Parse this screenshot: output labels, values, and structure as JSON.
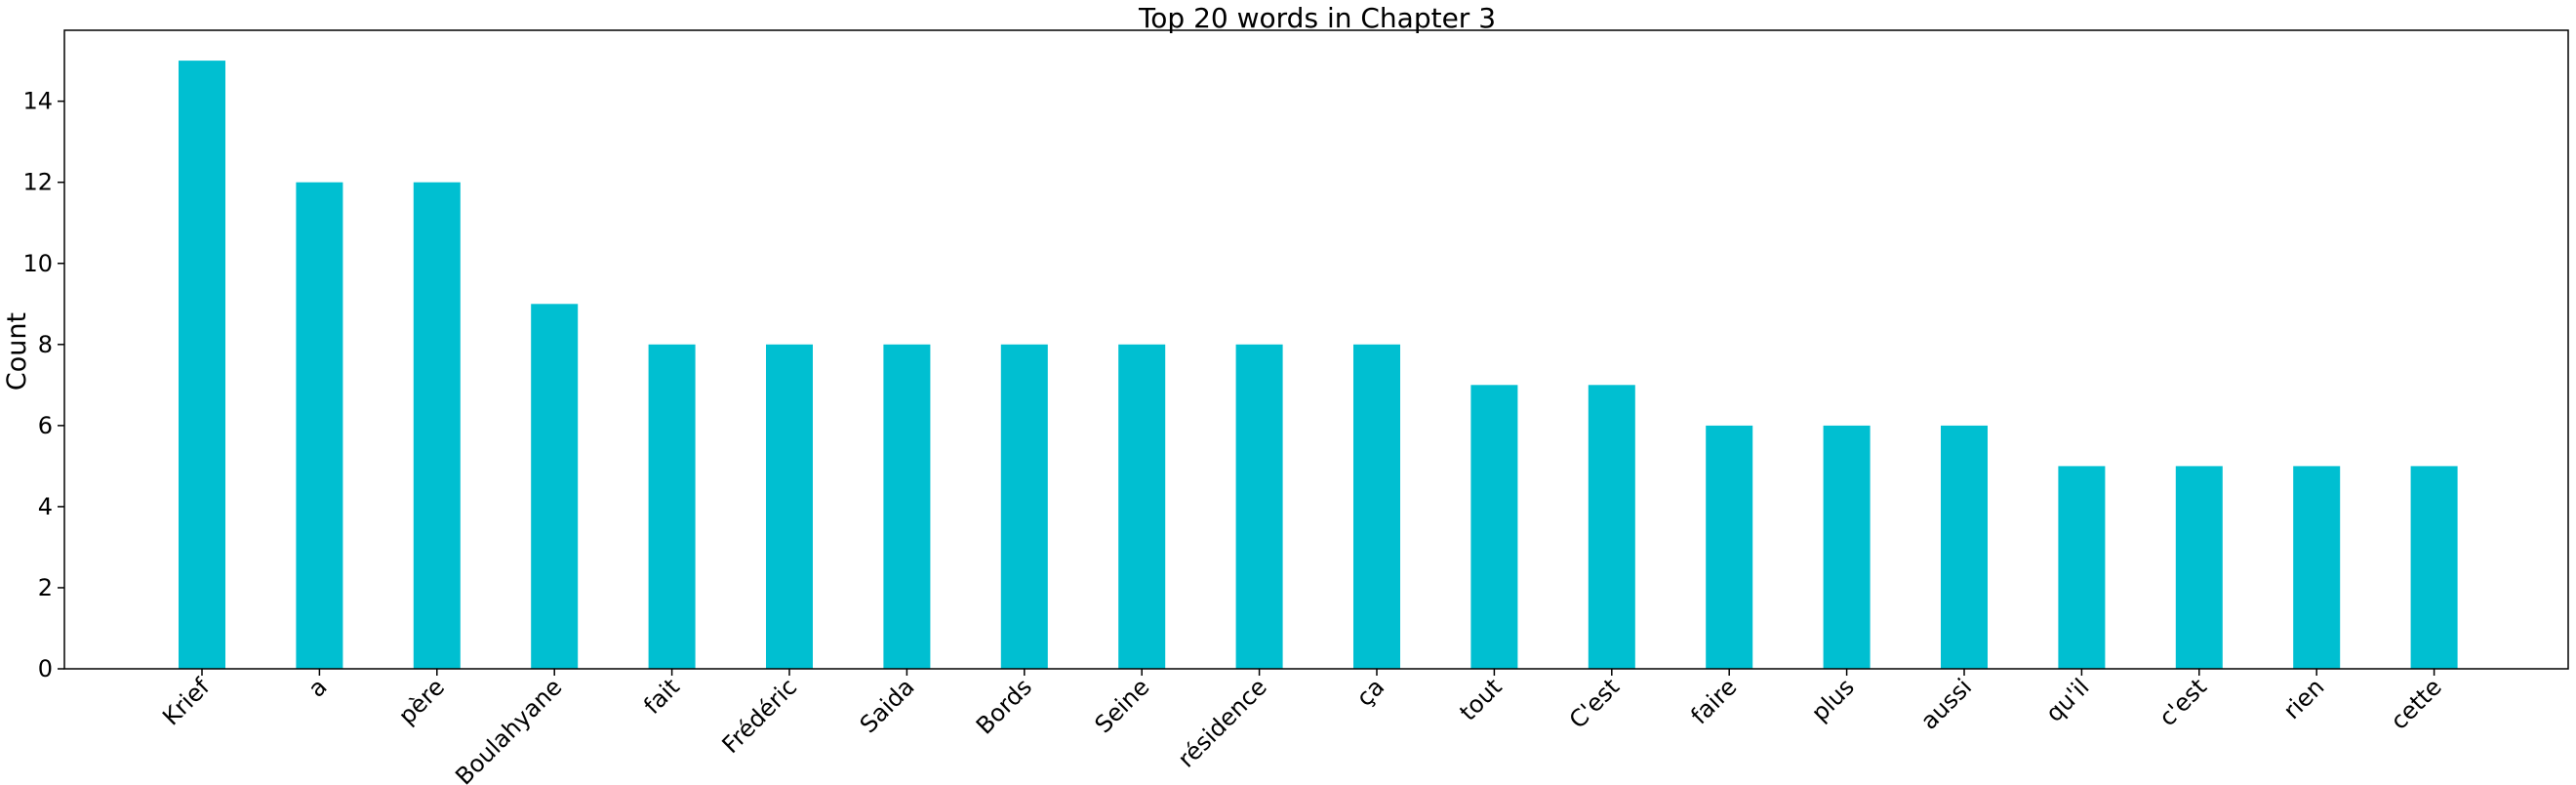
{
  "chart_data": {
    "type": "bar",
    "title": "Top 20 words in Chapter 3",
    "xlabel": "",
    "ylabel": "Count",
    "categories": [
      "Krief",
      "a",
      "père",
      "Boulahyane",
      "fait",
      "Frédéric",
      "Saida",
      "Bords",
      "Seine",
      "résidence",
      "ça",
      "tout",
      "C'est",
      "faire",
      "plus",
      "aussi",
      "qu'il",
      "c'est",
      "rien",
      "cette"
    ],
    "values": [
      15,
      12,
      12,
      9,
      8,
      8,
      8,
      8,
      8,
      8,
      8,
      7,
      7,
      6,
      6,
      6,
      5,
      5,
      5,
      5
    ],
    "ylim": [
      0,
      15.75
    ],
    "yticks": [
      0,
      2,
      4,
      6,
      8,
      10,
      12,
      14
    ],
    "bar_color": "#00bfd1",
    "grid": false,
    "x_tick_rotation": 45
  }
}
